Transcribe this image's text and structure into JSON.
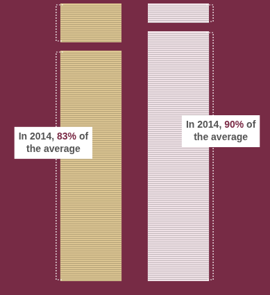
{
  "chart_data": {
    "type": "bar",
    "stacked": true,
    "categories": [
      null,
      null
    ],
    "series": [
      {
        "colors": [
          "#dcc592",
          "#efe1e6"
        ],
        "values": [
          83,
          90
        ]
      },
      {
        "colors": [
          "#dcc592",
          "#efe1e6"
        ],
        "values": [
          17,
          10
        ]
      }
    ],
    "ylim": [
      0,
      100
    ],
    "yticks": [],
    "grid": false,
    "tick_labels": false,
    "annotations": [
      "In 2014, 83% of the average",
      "In 2014, 90% of the average"
    ]
  }
}
